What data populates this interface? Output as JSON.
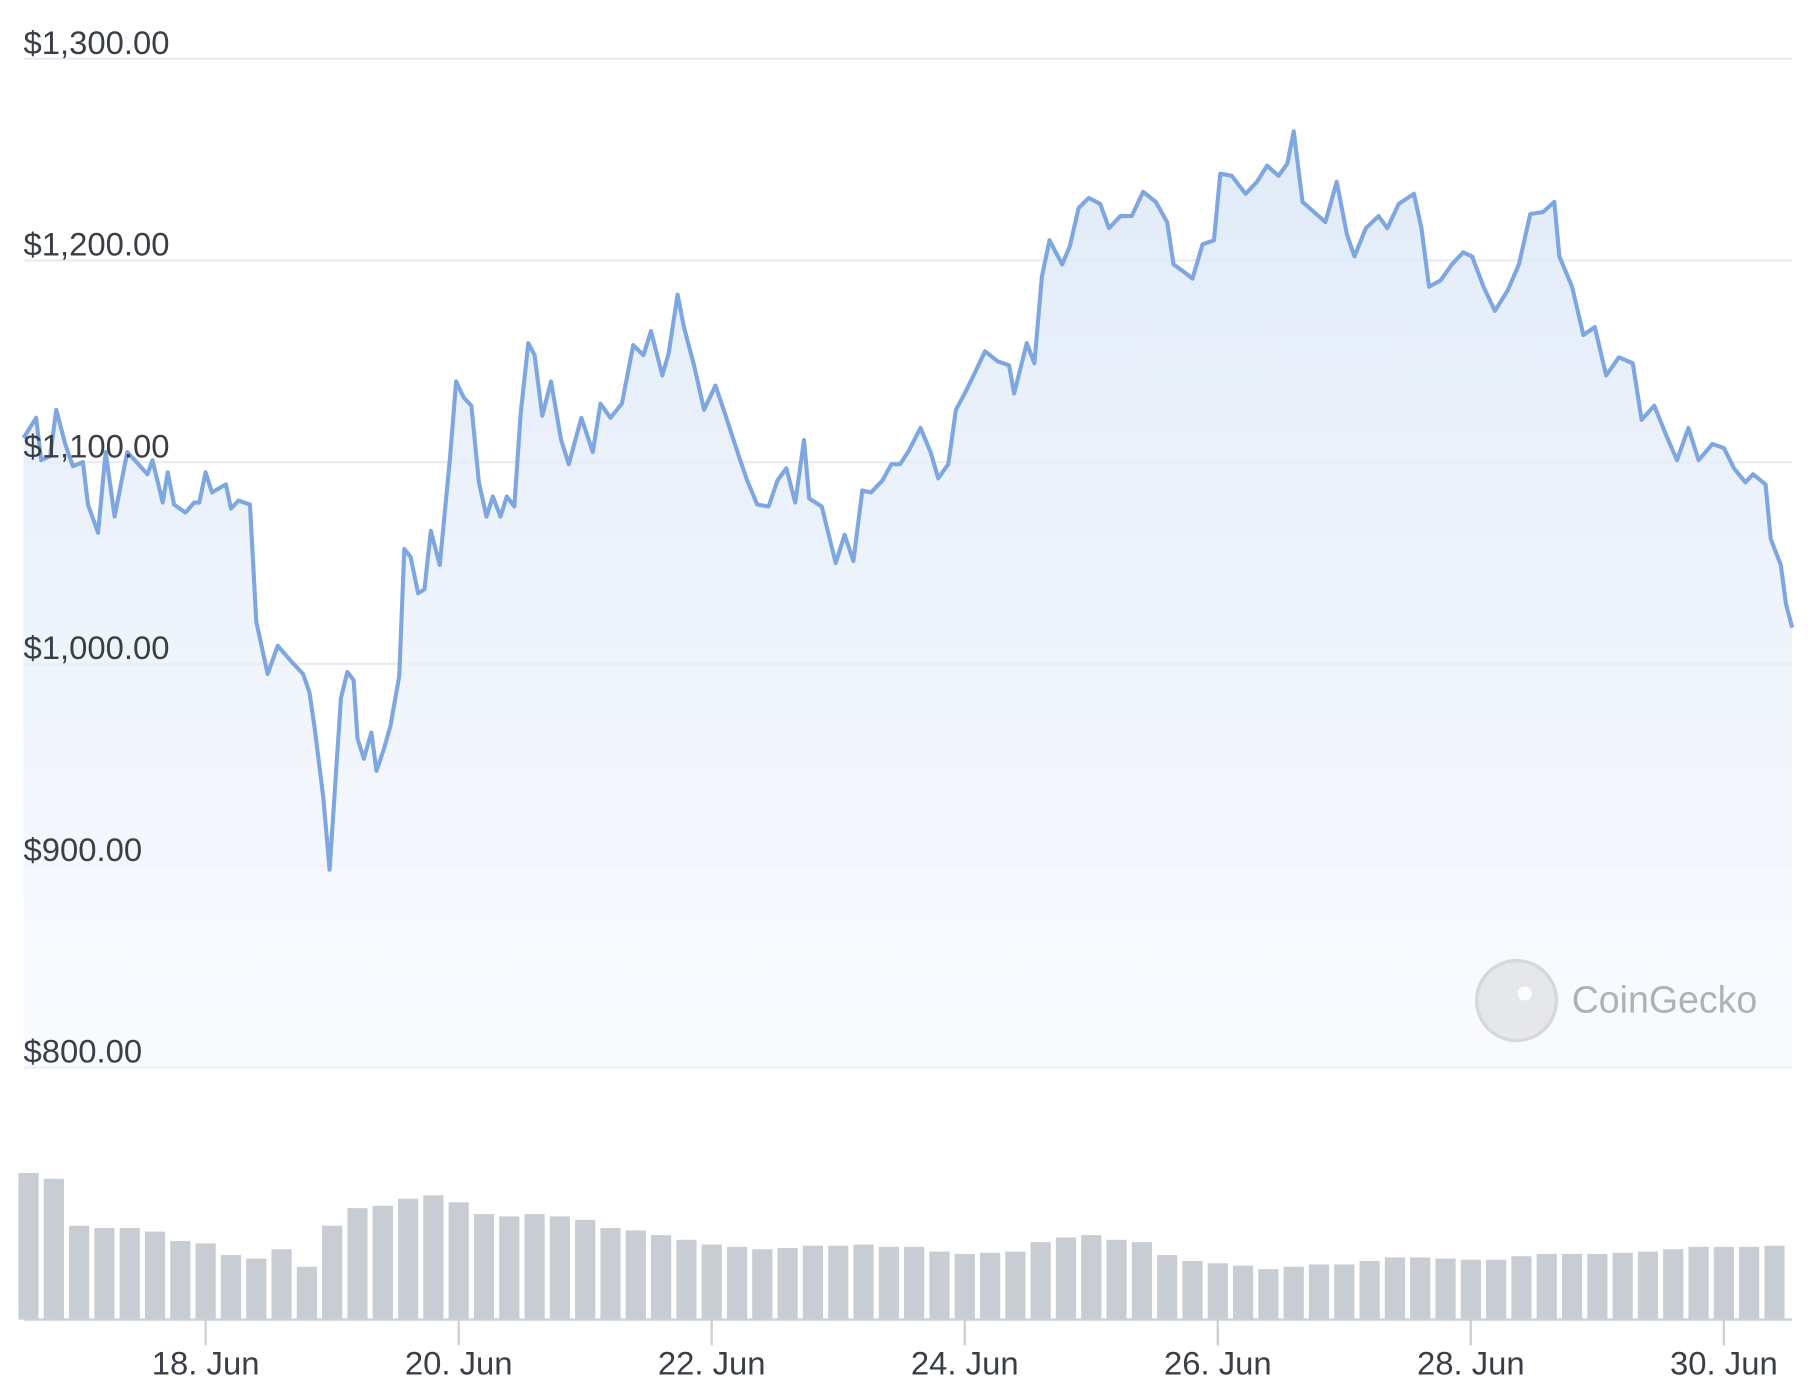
{
  "chart_data": {
    "type": "line",
    "watermark": "CoinGecko",
    "x": [
      16.56,
      16.66,
      16.7,
      16.77,
      16.82,
      16.89,
      16.95,
      17.03,
      17.07,
      17.15,
      17.21,
      17.28,
      17.38,
      17.44,
      17.54,
      17.58,
      17.66,
      17.7,
      17.75,
      17.84,
      17.91,
      17.95,
      18.0,
      18.05,
      18.16,
      18.2,
      18.26,
      18.35,
      18.4,
      18.49,
      18.57,
      18.68,
      18.77,
      18.82,
      18.86,
      18.93,
      18.98,
      19.07,
      19.12,
      19.17,
      19.2,
      19.25,
      19.31,
      19.35,
      19.41,
      19.46,
      19.53,
      19.57,
      19.62,
      19.68,
      19.73,
      19.78,
      19.85,
      19.93,
      19.98,
      20.04,
      20.1,
      20.16,
      20.22,
      20.27,
      20.33,
      20.38,
      20.44,
      20.49,
      20.55,
      20.6,
      20.66,
      20.73,
      20.81,
      20.87,
      20.97,
      21.06,
      21.12,
      21.2,
      21.29,
      21.38,
      21.46,
      21.52,
      21.61,
      21.66,
      21.73,
      21.78,
      21.86,
      21.94,
      22.03,
      22.11,
      22.22,
      22.28,
      22.36,
      22.45,
      22.52,
      22.59,
      22.66,
      22.73,
      22.77,
      22.87,
      22.98,
      23.05,
      23.12,
      23.19,
      23.26,
      23.35,
      23.42,
      23.49,
      23.56,
      23.65,
      23.73,
      23.79,
      23.87,
      23.93,
      24.0,
      24.07,
      24.16,
      24.26,
      24.35,
      24.39,
      24.49,
      24.55,
      24.61,
      24.67,
      24.77,
      24.83,
      24.9,
      24.98,
      25.07,
      25.14,
      25.23,
      25.32,
      25.41,
      25.51,
      25.6,
      25.65,
      25.74,
      25.8,
      25.88,
      25.97,
      26.02,
      26.11,
      26.22,
      26.31,
      26.39,
      26.48,
      26.55,
      26.6,
      26.67,
      26.76,
      26.85,
      26.94,
      27.02,
      27.08,
      27.17,
      27.27,
      27.34,
      27.43,
      27.55,
      27.61,
      27.67,
      27.76,
      27.85,
      27.94,
      28.01,
      28.1,
      28.19,
      28.29,
      28.38,
      28.47,
      28.57,
      28.66,
      28.7,
      28.8,
      28.89,
      28.98,
      29.07,
      29.17,
      29.28,
      29.35,
      29.45,
      29.54,
      29.63,
      29.72,
      29.8,
      29.91,
      30.0,
      30.08,
      30.17,
      30.23,
      30.33,
      30.37,
      30.45,
      30.49,
      30.54
    ],
    "series": [
      {
        "color": "#7ea6e0",
        "values": [
          1112,
          1122,
          1101,
          1103,
          1126,
          1109,
          1098,
          1100,
          1079,
          1065,
          1105,
          1073,
          1105,
          1101,
          1094,
          1101,
          1080,
          1095,
          1079,
          1075,
          1080,
          1080,
          1095,
          1085,
          1089,
          1077,
          1081,
          1079,
          1021,
          995,
          1009,
          1001,
          995,
          986,
          969,
          934,
          898,
          983,
          996,
          992,
          963,
          953,
          966,
          947,
          958,
          969,
          994,
          1057,
          1053,
          1035,
          1037,
          1066,
          1049,
          1101,
          1140,
          1132,
          1128,
          1090,
          1073,
          1083,
          1073,
          1083,
          1078,
          1124,
          1159,
          1153,
          1123,
          1140,
          1111,
          1099,
          1122,
          1105,
          1129,
          1122,
          1129,
          1158,
          1153,
          1165,
          1143,
          1154,
          1183,
          1167,
          1148,
          1126,
          1138,
          1123,
          1102,
          1091,
          1079,
          1078,
          1091,
          1097,
          1080,
          1111,
          1082,
          1078,
          1050,
          1064,
          1051,
          1086,
          1085,
          1091,
          1099,
          1099,
          1106,
          1117,
          1105,
          1092,
          1099,
          1126,
          1134,
          1143,
          1155,
          1150,
          1148,
          1134,
          1159,
          1149,
          1192,
          1210,
          1198,
          1207,
          1226,
          1231,
          1228,
          1216,
          1222,
          1222,
          1234,
          1229,
          1219,
          1198,
          1194,
          1191,
          1208,
          1210,
          1243,
          1242,
          1233,
          1239,
          1247,
          1242,
          1248,
          1264,
          1229,
          1224,
          1219,
          1239,
          1213,
          1202,
          1216,
          1222,
          1216,
          1228,
          1233,
          1216,
          1187,
          1190,
          1198,
          1204,
          1202,
          1187,
          1175,
          1185,
          1198,
          1223,
          1224,
          1229,
          1202,
          1187,
          1163,
          1167,
          1143,
          1152,
          1149,
          1121,
          1128,
          1114,
          1101,
          1117,
          1101,
          1109,
          1107,
          1097,
          1090,
          1094,
          1089,
          1062,
          1049,
          1030,
          1018
        ]
      }
    ],
    "volume": {
      "color": "#c8ccd3",
      "x": [
        16.6,
        16.8,
        17.0,
        17.2,
        17.4,
        17.6,
        17.8,
        18.0,
        18.2,
        18.4,
        18.6,
        18.8,
        19.0,
        19.2,
        19.4,
        19.6,
        19.8,
        20.0,
        20.2,
        20.4,
        20.6,
        20.8,
        21.0,
        21.2,
        21.4,
        21.6,
        21.8,
        22.0,
        22.2,
        22.4,
        22.6,
        22.8,
        23.0,
        23.2,
        23.4,
        23.6,
        23.8,
        24.0,
        24.2,
        24.4,
        24.6,
        24.8,
        25.0,
        25.2,
        25.4,
        25.6,
        25.8,
        26.0,
        26.2,
        26.4,
        26.6,
        26.8,
        27.0,
        27.2,
        27.4,
        27.6,
        27.8,
        28.0,
        28.2,
        28.4,
        28.6,
        28.8,
        29.0,
        29.2,
        29.4,
        29.6,
        29.8,
        30.0,
        30.2,
        30.4
      ],
      "values": [
        125,
        120,
        80,
        78,
        78,
        75,
        67,
        65,
        55,
        52,
        60,
        45,
        80,
        95,
        97,
        103,
        106,
        100,
        90,
        88,
        90,
        88,
        85,
        78,
        76,
        72,
        68,
        64,
        62,
        60,
        61,
        63,
        63,
        64,
        62,
        62,
        58,
        56,
        57,
        58,
        66,
        70,
        72,
        68,
        66,
        55,
        50,
        48,
        46,
        43,
        45,
        47,
        47,
        50,
        53,
        53,
        52,
        51,
        51,
        54,
        56,
        56,
        56,
        57,
        58,
        60,
        62,
        62,
        62,
        63
      ]
    },
    "xlim": [
      16.56,
      30.54
    ],
    "ylim": [
      800,
      1300
    ],
    "xticks": [
      {
        "value": 18,
        "label": "18. Jun"
      },
      {
        "value": 20,
        "label": "20. Jun"
      },
      {
        "value": 22,
        "label": "22. Jun"
      },
      {
        "value": 24,
        "label": "24. Jun"
      },
      {
        "value": 26,
        "label": "26. Jun"
      },
      {
        "value": 28,
        "label": "28. Jun"
      },
      {
        "value": 30,
        "label": "30. Jun"
      }
    ],
    "yticks": [
      {
        "value": 800,
        "label": "$800.00"
      },
      {
        "value": 900,
        "label": "$900.00"
      },
      {
        "value": 1000,
        "label": "$1,000.00"
      },
      {
        "value": 1100,
        "label": "$1,100.00"
      },
      {
        "value": 1200,
        "label": "$1,200.00"
      },
      {
        "value": 1300,
        "label": "$1,300.00"
      }
    ],
    "grid": true
  }
}
